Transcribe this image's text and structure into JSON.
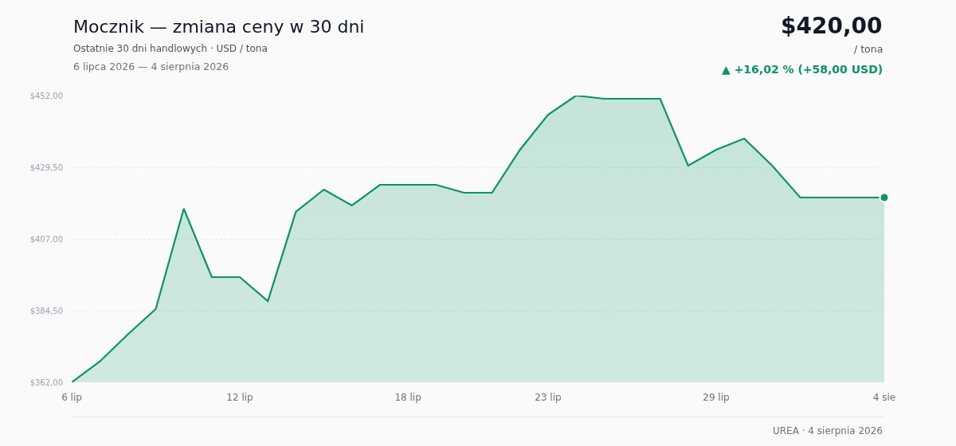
{
  "chart_data": {
    "type": "area",
    "title": "Mocznik — zmiana ceny w 30 dni",
    "subtitle": "Ostatnie 30 dni handlowych · USD / tona",
    "categories": [
      "6 lip",
      null,
      null,
      null,
      null,
      null,
      "12 lip",
      null,
      null,
      null,
      null,
      null,
      "18 lip",
      null,
      null,
      null,
      null,
      "23 lip",
      null,
      null,
      null,
      null,
      null,
      "29 lip",
      null,
      null,
      null,
      null,
      null,
      "4 sie"
    ],
    "series": [
      {
        "color": "#0a9466",
        "values": [
          362,
          368.5,
          377,
          385,
          416.5,
          395,
          395,
          387.5,
          415.5,
          422.5,
          417.5,
          424,
          424,
          424,
          421.5,
          421.5,
          435,
          446,
          452,
          451,
          451,
          451,
          430,
          435,
          438.5,
          430,
          420,
          420,
          420,
          420
        ]
      }
    ],
    "ylim": [
      362,
      452
    ],
    "yticks": [
      {
        "value": 362,
        "label": "$362,00"
      },
      {
        "value": 384.5,
        "label": "$384,50"
      },
      {
        "value": 407,
        "label": "$407,00"
      },
      {
        "value": 429.5,
        "label": "$429,50"
      },
      {
        "value": 452,
        "label": "$452,00"
      }
    ],
    "grid": "y",
    "legend": false,
    "annotations": [
      "6 lipca 2026 — 4 sierpnia 2026",
      "$420,00",
      "/ tona",
      "▲ +16,02 % (+58,00 USD)",
      "UREA · 4 sierpnia 2026"
    ]
  }
}
